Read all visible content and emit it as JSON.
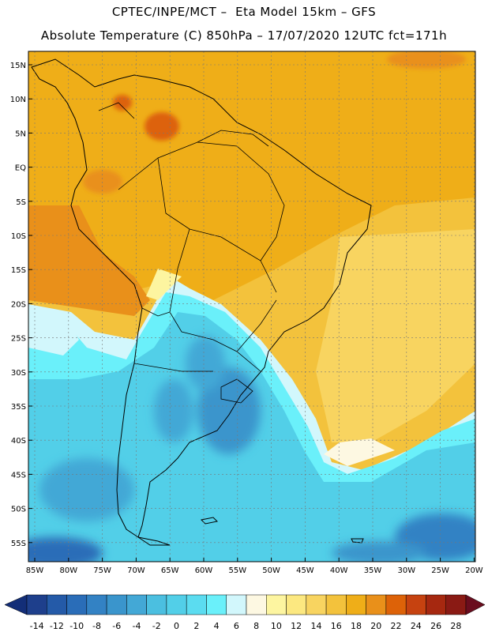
{
  "header": {
    "line1": "CPTEC/INPE/MCT –  Eta Model 15km – GFS",
    "line2": "Absolute Temperature (C) 850hPa – 17/07/2020 12UTC fct=171h"
  },
  "map": {
    "lat_ticks": [
      "15N",
      "10N",
      "5N",
      "EQ",
      "5S",
      "10S",
      "15S",
      "20S",
      "25S",
      "30S",
      "35S",
      "40S",
      "45S",
      "50S",
      "55S"
    ],
    "lon_ticks": [
      "85W",
      "80W",
      "75W",
      "70W",
      "65W",
      "60W",
      "55W",
      "50W",
      "45W",
      "40W",
      "35W",
      "30W",
      "25W",
      "20W"
    ]
  },
  "colorbar": {
    "labels": [
      "-14",
      "-12",
      "-10",
      "-8",
      "-6",
      "-4",
      "-2",
      "0",
      "2",
      "4",
      "6",
      "8",
      "10",
      "12",
      "14",
      "16",
      "18",
      "20",
      "22",
      "24",
      "26",
      "28"
    ],
    "colors": [
      "#1e3f8c",
      "#245aa8",
      "#2a6db8",
      "#3382c4",
      "#3a95cc",
      "#43a8d6",
      "#4bbfe0",
      "#52cfe8",
      "#5bdcf0",
      "#6af0fa",
      "#d2f7fc",
      "#fdf8e2",
      "#fdf5a0",
      "#fce880",
      "#f8d460",
      "#f3c23c",
      "#efae18",
      "#e9901a",
      "#dd6208",
      "#c64210",
      "#a62810",
      "#8a1a14"
    ],
    "left_arrow_color": "#132e78",
    "right_arrow_color": "#6a0d1e"
  }
}
